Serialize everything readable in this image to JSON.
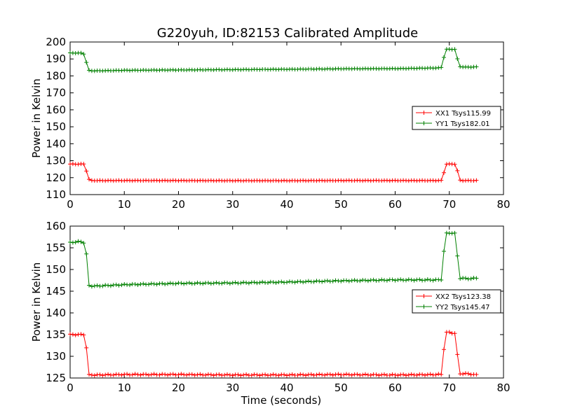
{
  "title": "G220yuh, ID:82153 Calibrated Amplitude",
  "colors": {
    "xx": "#ff0000",
    "yy": "#008000"
  },
  "chart_data": [
    {
      "type": "line",
      "ylabel": "Power in Kelvin",
      "xlabel": "",
      "xlim": [
        0,
        80
      ],
      "ylim": [
        110,
        200
      ],
      "xticks": [
        0,
        10,
        20,
        30,
        40,
        50,
        60,
        70,
        80
      ],
      "yticks": [
        110,
        120,
        130,
        140,
        150,
        160,
        170,
        180,
        190,
        200
      ],
      "legend_position": "right",
      "series": [
        {
          "name": "XX1 Tsys115.99",
          "color": "#ff0000",
          "x": [
            0,
            0.5,
            1,
            1.5,
            2,
            2.5,
            3,
            3.5,
            4,
            5,
            10,
            20,
            30,
            40,
            50,
            60,
            68,
            68.5,
            69,
            69.5,
            70,
            70.5,
            71,
            71.5,
            72,
            72.5,
            73,
            74,
            75
          ],
          "y": [
            128,
            128,
            128,
            128,
            128,
            128,
            124,
            119,
            118.3,
            118.3,
            118.3,
            118.3,
            118.2,
            118.2,
            118.3,
            118.3,
            118.3,
            118.3,
            123,
            128,
            128,
            128,
            128,
            124,
            118.5,
            118.3,
            118.3,
            118.3,
            118.3
          ]
        },
        {
          "name": "YY1 Tsys182.01",
          "color": "#008000",
          "x": [
            0,
            0.5,
            1,
            1.5,
            2,
            2.5,
            3,
            3.5,
            4,
            5,
            10,
            20,
            30,
            40,
            50,
            60,
            68,
            68.5,
            69,
            69.5,
            70,
            70.5,
            71,
            71.5,
            72,
            72.5,
            73,
            74,
            75
          ],
          "y": [
            193.5,
            193.5,
            193.5,
            193.5,
            193.5,
            193,
            188,
            183.2,
            183,
            183,
            183.3,
            183.5,
            183.7,
            183.9,
            184.2,
            184.3,
            184.7,
            185,
            191,
            195.7,
            195.7,
            195.7,
            195.7,
            190,
            185.5,
            185.3,
            185.2,
            185.2,
            185.3
          ]
        }
      ]
    },
    {
      "type": "line",
      "ylabel": "Power in Kelvin",
      "xlabel": "Time (seconds)",
      "xlim": [
        0,
        80
      ],
      "ylim": [
        125,
        160
      ],
      "xticks": [
        0,
        10,
        20,
        30,
        40,
        50,
        60,
        70,
        80
      ],
      "yticks": [
        125,
        130,
        135,
        140,
        145,
        150,
        155,
        160
      ],
      "legend_position": "right",
      "series": [
        {
          "name": "XX2 Tsys123.38",
          "color": "#ff0000",
          "x": [
            0,
            0.5,
            1,
            1.5,
            2,
            2.5,
            3,
            3.5,
            4,
            5,
            10,
            20,
            30,
            40,
            50,
            60,
            68,
            68.5,
            69,
            69.5,
            70,
            70.5,
            71,
            71.5,
            72,
            72.5,
            73,
            74,
            75
          ],
          "y": [
            135,
            135,
            135,
            135,
            135,
            135,
            132,
            125.7,
            125.7,
            125.7,
            125.8,
            125.8,
            125.7,
            125.7,
            125.8,
            125.7,
            125.8,
            125.8,
            131.7,
            135.5,
            135.5,
            135.4,
            135.3,
            130.3,
            126,
            126,
            126,
            125.9,
            125.7
          ]
        },
        {
          "name": "YY2 Tsys145.47",
          "color": "#008000",
          "x": [
            0,
            0.5,
            1,
            1.5,
            2,
            2.5,
            3,
            3.5,
            4,
            5,
            10,
            20,
            30,
            40,
            50,
            60,
            68,
            68.5,
            69,
            69.5,
            70,
            70.5,
            71,
            71.5,
            72,
            72.5,
            73,
            74,
            75
          ],
          "y": [
            156.2,
            156.3,
            156.3,
            156.4,
            156.4,
            156.2,
            153.5,
            146.3,
            146.2,
            146.2,
            146.5,
            146.8,
            146.9,
            147.1,
            147.4,
            147.6,
            147.6,
            147.7,
            154.2,
            158.3,
            158.4,
            158.4,
            158.3,
            153.1,
            148,
            148,
            147.9,
            147.9,
            148
          ]
        }
      ]
    }
  ]
}
